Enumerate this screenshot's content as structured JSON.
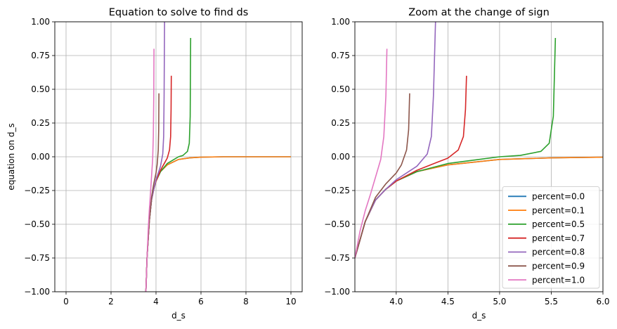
{
  "chart_data": [
    {
      "type": "line",
      "title": "Equation to solve to find ds",
      "xlabel": "d_s",
      "ylabel": "equation on d_s",
      "xlim": [
        -0.5,
        10.5
      ],
      "ylim": [
        -1.0,
        1.0
      ],
      "xticks": [
        0,
        2,
        4,
        6,
        8,
        10
      ],
      "xtick_labels": [
        "0",
        "2",
        "4",
        "6",
        "8",
        "10"
      ],
      "yticks": [
        -1.0,
        -0.75,
        -0.5,
        -0.25,
        0.0,
        0.25,
        0.5,
        0.75,
        1.0
      ],
      "ytick_labels": [
        "−1.00",
        "−0.75",
        "−0.50",
        "−0.25",
        "0.00",
        "0.25",
        "0.50",
        "0.75",
        "1.00"
      ],
      "grid": true,
      "legend": null,
      "series": [
        {
          "name": "percent=0.0",
          "color": "#1f77b4",
          "x": [
            3.55,
            3.6,
            3.7,
            3.8,
            3.9,
            4.0,
            4.2,
            4.5,
            5.0,
            5.5,
            6.0,
            7.0,
            8.0,
            9.0,
            10.0
          ],
          "y": [
            -1.0,
            -0.75,
            -0.48,
            -0.32,
            -0.24,
            -0.18,
            -0.11,
            -0.06,
            -0.02,
            -0.008,
            -0.003,
            0.0,
            0.0,
            0.0,
            0.0
          ]
        },
        {
          "name": "percent=0.1",
          "color": "#ff7f0e",
          "x": [
            3.55,
            3.6,
            3.7,
            3.8,
            3.9,
            4.0,
            4.2,
            4.5,
            5.0,
            5.5,
            6.0,
            7.0,
            8.0,
            9.0,
            10.0
          ],
          "y": [
            -1.0,
            -0.75,
            -0.48,
            -0.32,
            -0.24,
            -0.18,
            -0.11,
            -0.06,
            -0.02,
            -0.008,
            -0.003,
            0.0,
            0.0,
            0.0,
            0.0
          ]
        },
        {
          "name": "percent=0.5",
          "color": "#2ca02c",
          "x": [
            3.55,
            3.6,
            3.7,
            3.8,
            3.9,
            4.0,
            4.2,
            4.5,
            4.8,
            5.0,
            5.2,
            5.4,
            5.48,
            5.52,
            5.54
          ],
          "y": [
            -1.0,
            -0.75,
            -0.48,
            -0.32,
            -0.24,
            -0.18,
            -0.11,
            -0.05,
            -0.02,
            0.0,
            0.01,
            0.04,
            0.1,
            0.3,
            0.88
          ]
        },
        {
          "name": "percent=0.7",
          "color": "#d62728",
          "x": [
            3.55,
            3.6,
            3.7,
            3.8,
            3.9,
            4.0,
            4.2,
            4.4,
            4.5,
            4.6,
            4.65,
            4.67,
            4.68
          ],
          "y": [
            -1.0,
            -0.75,
            -0.48,
            -0.32,
            -0.24,
            -0.18,
            -0.1,
            -0.04,
            -0.01,
            0.05,
            0.15,
            0.35,
            0.6
          ]
        },
        {
          "name": "percent=0.8",
          "color": "#9467bd",
          "x": [
            3.55,
            3.6,
            3.7,
            3.8,
            3.9,
            4.0,
            4.1,
            4.2,
            4.3,
            4.34,
            4.36,
            4.38
          ],
          "y": [
            -1.0,
            -0.75,
            -0.48,
            -0.32,
            -0.24,
            -0.17,
            -0.12,
            -0.07,
            0.02,
            0.15,
            0.45,
            1.0
          ]
        },
        {
          "name": "percent=0.9",
          "color": "#8c564b",
          "x": [
            3.55,
            3.6,
            3.7,
            3.8,
            3.9,
            4.0,
            4.05,
            4.1,
            4.12,
            4.13
          ],
          "y": [
            -1.0,
            -0.75,
            -0.48,
            -0.3,
            -0.2,
            -0.12,
            -0.06,
            0.05,
            0.2,
            0.47
          ]
        },
        {
          "name": "percent=1.0",
          "color": "#e377c2",
          "x": [
            3.55,
            3.6,
            3.65,
            3.7,
            3.75,
            3.8,
            3.85,
            3.88,
            3.9,
            3.91
          ],
          "y": [
            -1.0,
            -0.75,
            -0.55,
            -0.4,
            -0.28,
            -0.15,
            -0.02,
            0.15,
            0.45,
            0.8
          ]
        }
      ]
    },
    {
      "type": "line",
      "title": "Zoom at the change of sign",
      "xlabel": "d_s",
      "ylabel": "",
      "xlim": [
        3.6,
        6.0
      ],
      "ylim": [
        -1.0,
        1.0
      ],
      "xticks": [
        4.0,
        4.5,
        5.0,
        5.5,
        6.0
      ],
      "xtick_labels": [
        "4.0",
        "4.5",
        "5.0",
        "5.5",
        "6.0"
      ],
      "yticks": [
        -1.0,
        -0.75,
        -0.5,
        -0.25,
        0.0,
        0.25,
        0.5,
        0.75,
        1.0
      ],
      "ytick_labels": [
        "−1.00",
        "−0.75",
        "−0.50",
        "−0.25",
        "0.00",
        "0.25",
        "0.50",
        "0.75",
        "1.00"
      ],
      "grid": true,
      "legend": "lower-right",
      "series": [
        {
          "name": "percent=0.0",
          "color": "#1f77b4",
          "x": [
            3.6,
            3.7,
            3.8,
            3.9,
            4.0,
            4.2,
            4.5,
            5.0,
            5.5,
            6.0
          ],
          "y": [
            -0.75,
            -0.48,
            -0.32,
            -0.24,
            -0.18,
            -0.11,
            -0.06,
            -0.02,
            -0.008,
            -0.003
          ]
        },
        {
          "name": "percent=0.1",
          "color": "#ff7f0e",
          "x": [
            3.6,
            3.7,
            3.8,
            3.9,
            4.0,
            4.2,
            4.5,
            5.0,
            5.5,
            6.0
          ],
          "y": [
            -0.75,
            -0.48,
            -0.32,
            -0.24,
            -0.18,
            -0.11,
            -0.06,
            -0.02,
            -0.008,
            -0.003
          ]
        },
        {
          "name": "percent=0.5",
          "color": "#2ca02c",
          "x": [
            3.6,
            3.7,
            3.8,
            3.9,
            4.0,
            4.2,
            4.5,
            4.8,
            5.0,
            5.2,
            5.4,
            5.48,
            5.52,
            5.54
          ],
          "y": [
            -0.75,
            -0.48,
            -0.32,
            -0.24,
            -0.18,
            -0.11,
            -0.05,
            -0.02,
            0.0,
            0.01,
            0.04,
            0.1,
            0.3,
            0.88
          ]
        },
        {
          "name": "percent=0.7",
          "color": "#d62728",
          "x": [
            3.6,
            3.7,
            3.8,
            3.9,
            4.0,
            4.2,
            4.4,
            4.5,
            4.6,
            4.65,
            4.67,
            4.68
          ],
          "y": [
            -0.75,
            -0.48,
            -0.32,
            -0.24,
            -0.18,
            -0.1,
            -0.04,
            -0.01,
            0.05,
            0.15,
            0.35,
            0.6
          ]
        },
        {
          "name": "percent=0.8",
          "color": "#9467bd",
          "x": [
            3.6,
            3.7,
            3.8,
            3.9,
            4.0,
            4.1,
            4.2,
            4.3,
            4.34,
            4.36,
            4.38
          ],
          "y": [
            -0.75,
            -0.48,
            -0.32,
            -0.24,
            -0.17,
            -0.12,
            -0.07,
            0.02,
            0.15,
            0.45,
            1.0
          ]
        },
        {
          "name": "percent=0.9",
          "color": "#8c564b",
          "x": [
            3.6,
            3.7,
            3.8,
            3.9,
            4.0,
            4.05,
            4.1,
            4.12,
            4.13
          ],
          "y": [
            -0.75,
            -0.48,
            -0.3,
            -0.2,
            -0.12,
            -0.06,
            0.05,
            0.2,
            0.47
          ]
        },
        {
          "name": "percent=1.0",
          "color": "#e377c2",
          "x": [
            3.6,
            3.65,
            3.7,
            3.75,
            3.8,
            3.85,
            3.88,
            3.9,
            3.91
          ],
          "y": [
            -0.75,
            -0.55,
            -0.4,
            -0.28,
            -0.15,
            -0.02,
            0.15,
            0.45,
            0.8
          ]
        }
      ]
    }
  ]
}
